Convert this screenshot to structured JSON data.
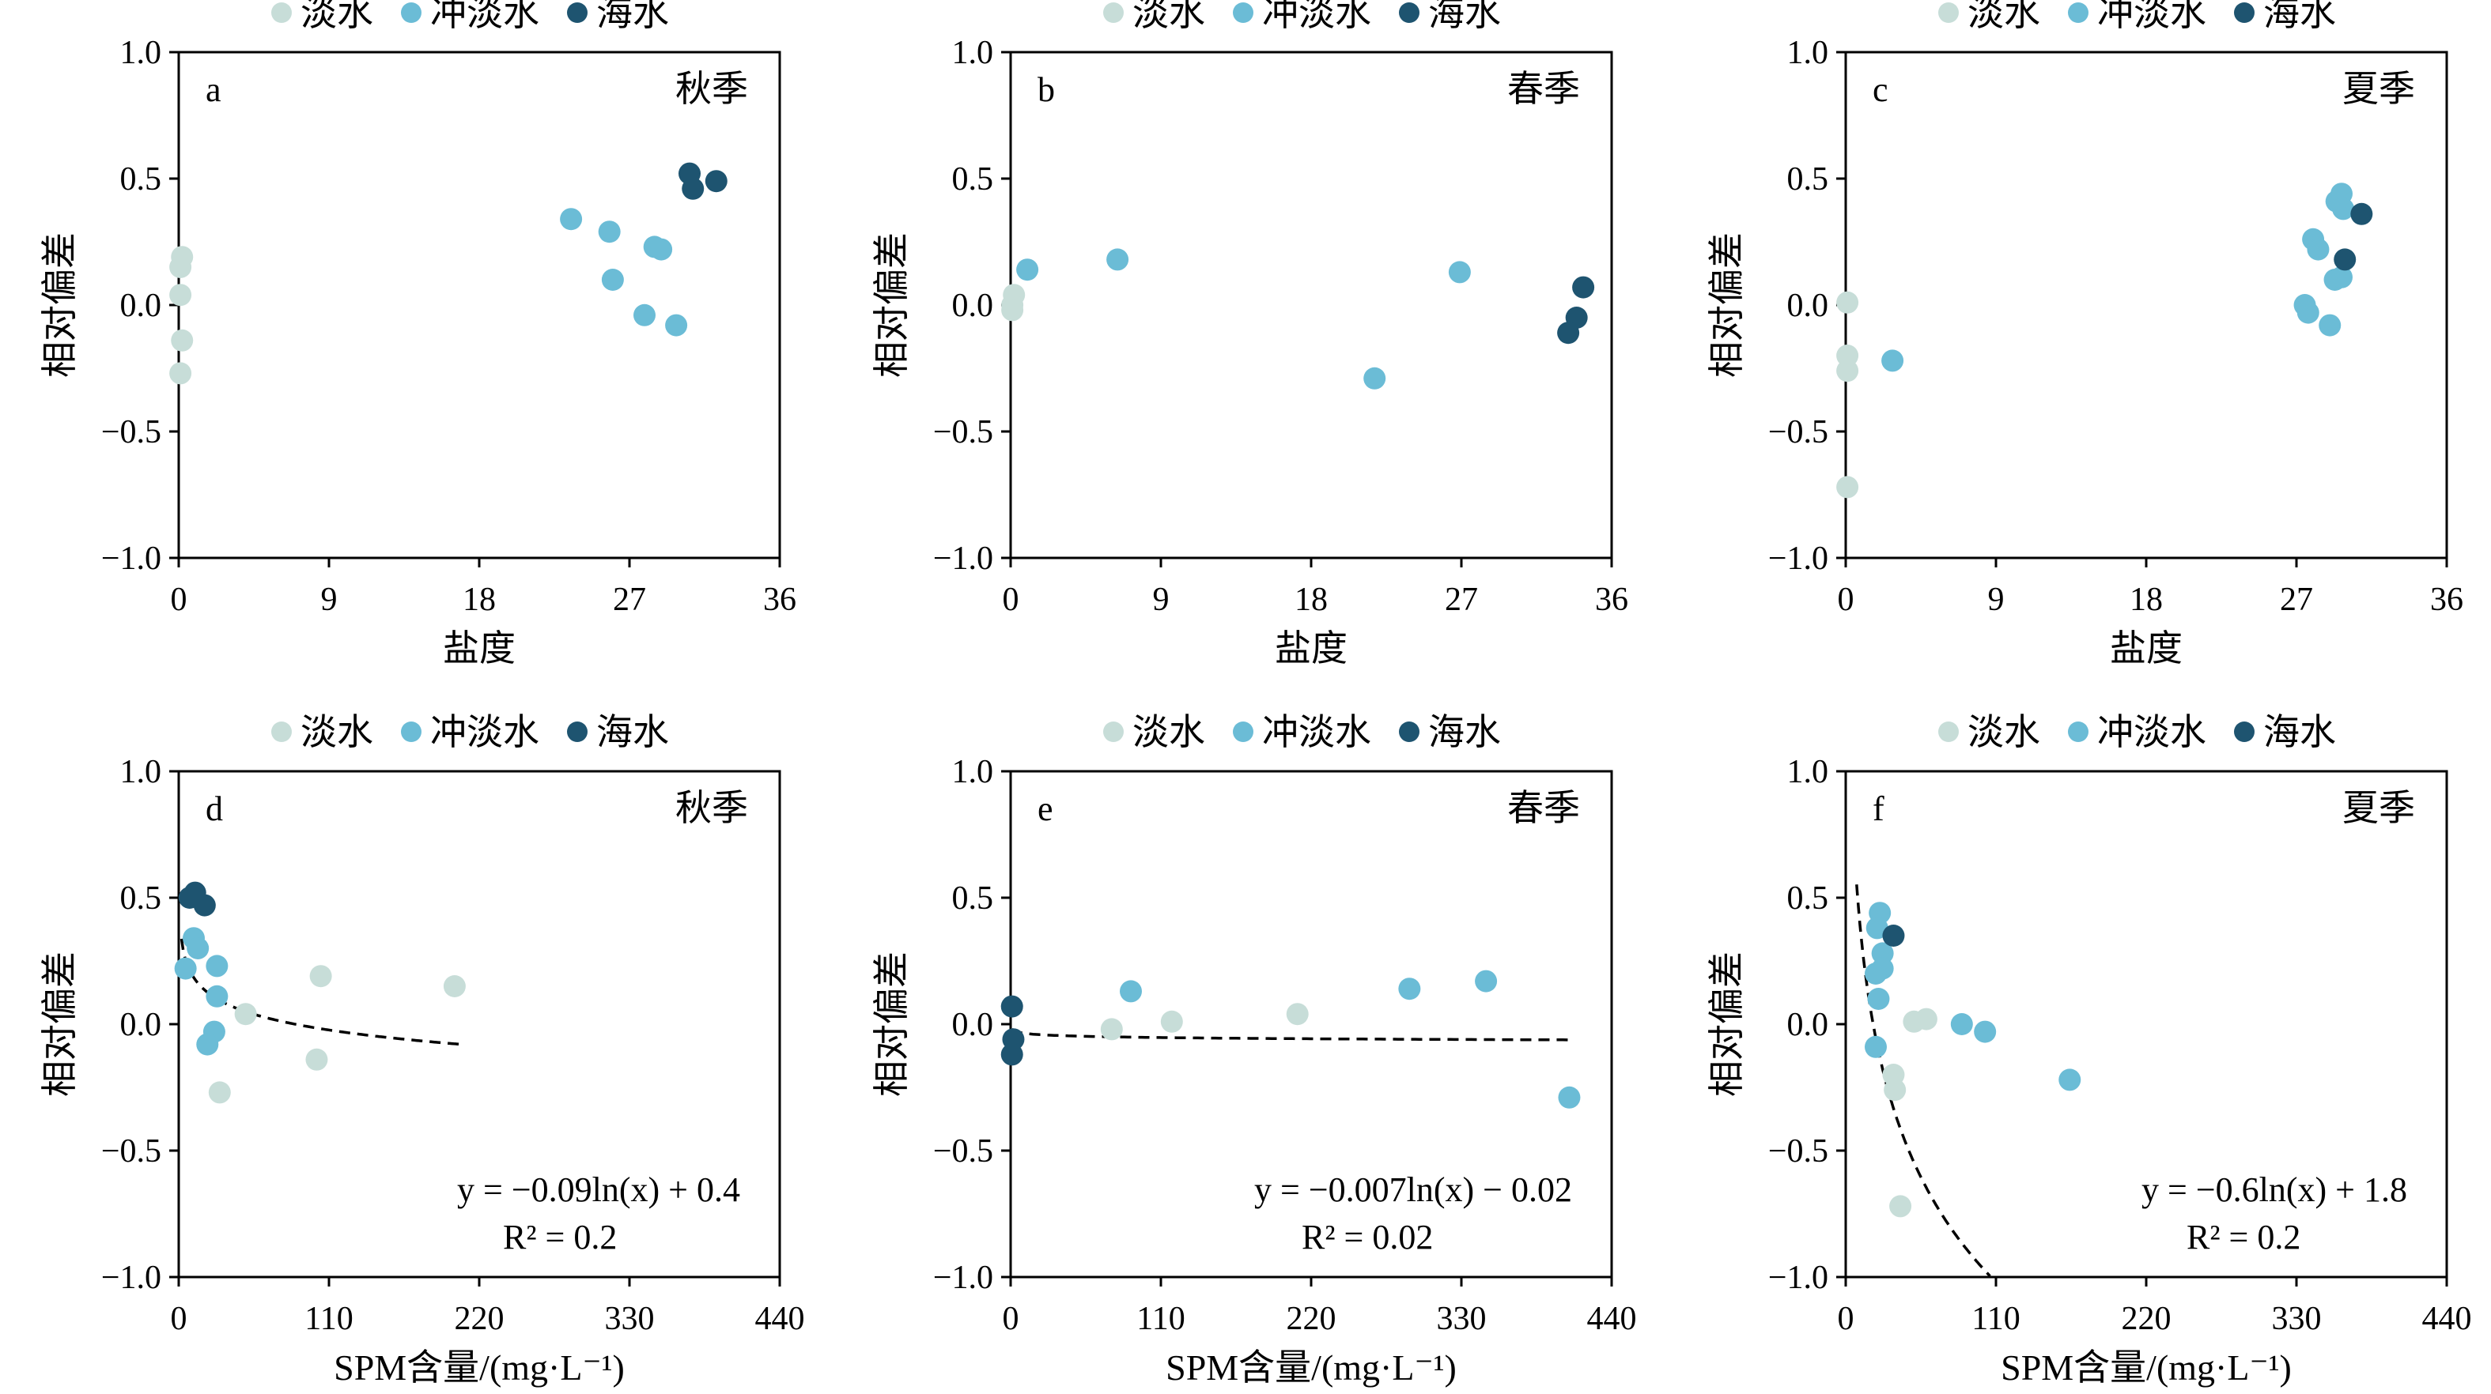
{
  "colors": {
    "淡水": "#c7ddd8",
    "冲淡水": "#6bbcd6",
    "海水": "#1e5470"
  },
  "chart_data": [
    {
      "panel_letter": "a",
      "season": "秋季",
      "type": "scatter",
      "xlabel": "盐度",
      "ylabel": "相对偏差",
      "xlim": [
        0,
        36
      ],
      "ylim": [
        -1.0,
        1.0
      ],
      "xticks": [
        "0",
        "9",
        "18",
        "27",
        "36"
      ],
      "yticks": [
        "1.0",
        "0.5",
        "0.0",
        "−0.5",
        "−1.0"
      ],
      "legend": [
        "淡水",
        "冲淡水",
        "海水"
      ],
      "legend_position": "top-center",
      "series": [
        {
          "name": "淡水",
          "points": [
            [
              0.2,
              0.19
            ],
            [
              0.1,
              0.15
            ],
            [
              0.1,
              0.04
            ],
            [
              0.2,
              -0.14
            ],
            [
              0.1,
              -0.27
            ]
          ]
        },
        {
          "name": "冲淡水",
          "points": [
            [
              23.5,
              0.34
            ],
            [
              25.8,
              0.29
            ],
            [
              26.0,
              0.1
            ],
            [
              28.5,
              0.23
            ],
            [
              28.9,
              0.22
            ],
            [
              27.9,
              -0.04
            ],
            [
              29.8,
              -0.08
            ]
          ]
        },
        {
          "name": "海水",
          "points": [
            [
              30.6,
              0.52
            ],
            [
              30.8,
              0.46
            ],
            [
              32.2,
              0.49
            ]
          ]
        }
      ],
      "fit": null
    },
    {
      "panel_letter": "b",
      "season": "春季",
      "type": "scatter",
      "xlabel": "盐度",
      "ylabel": "相对偏差",
      "xlim": [
        0,
        36
      ],
      "ylim": [
        -1.0,
        1.0
      ],
      "xticks": [
        "0",
        "9",
        "18",
        "27",
        "36"
      ],
      "yticks": [
        "1.0",
        "0.5",
        "0.0",
        "−0.5",
        "−1.0"
      ],
      "legend": [
        "淡水",
        "冲淡水",
        "海水"
      ],
      "legend_position": "top-center",
      "series": [
        {
          "name": "淡水",
          "points": [
            [
              0.2,
              0.04
            ],
            [
              0.1,
              0.0
            ],
            [
              0.1,
              -0.02
            ]
          ]
        },
        {
          "name": "冲淡水",
          "points": [
            [
              1.0,
              0.14
            ],
            [
              6.4,
              0.18
            ],
            [
              21.8,
              -0.29
            ],
            [
              26.9,
              0.13
            ]
          ]
        },
        {
          "name": "海水",
          "points": [
            [
              34.3,
              0.07
            ],
            [
              33.9,
              -0.05
            ],
            [
              33.4,
              -0.11
            ]
          ]
        }
      ],
      "fit": null
    },
    {
      "panel_letter": "c",
      "season": "夏季",
      "type": "scatter",
      "xlabel": "盐度",
      "ylabel": "相对偏差",
      "xlim": [
        0,
        36
      ],
      "ylim": [
        -1.0,
        1.0
      ],
      "xticks": [
        "0",
        "9",
        "18",
        "27",
        "36"
      ],
      "yticks": [
        "1.0",
        "0.5",
        "0.0",
        "−0.5",
        "−1.0"
      ],
      "legend": [
        "淡水",
        "冲淡水",
        "海水"
      ],
      "legend_position": "top-center",
      "series": [
        {
          "name": "淡水",
          "points": [
            [
              0.1,
              0.01
            ],
            [
              0.1,
              -0.2
            ],
            [
              0.1,
              -0.26
            ],
            [
              0.1,
              -0.72
            ]
          ]
        },
        {
          "name": "冲淡水",
          "points": [
            [
              2.8,
              -0.22
            ],
            [
              28.0,
              0.26
            ],
            [
              28.3,
              0.22
            ],
            [
              29.4,
              0.41
            ],
            [
              29.7,
              0.44
            ],
            [
              29.8,
              0.38
            ],
            [
              27.5,
              0.0
            ],
            [
              27.7,
              -0.03
            ],
            [
              29.3,
              0.1
            ],
            [
              29.7,
              0.11
            ],
            [
              29.0,
              -0.08
            ]
          ]
        },
        {
          "name": "海水",
          "points": [
            [
              30.9,
              0.36
            ],
            [
              29.9,
              0.18
            ]
          ]
        }
      ],
      "fit": null
    },
    {
      "panel_letter": "d",
      "season": "秋季",
      "type": "scatter",
      "xlabel": "SPM含量/(mg·L⁻¹)",
      "ylabel": "相对偏差",
      "xlim": [
        0,
        440
      ],
      "ylim": [
        -1.0,
        1.0
      ],
      "xticks": [
        "0",
        "110",
        "220",
        "330",
        "440"
      ],
      "yticks": [
        "1.0",
        "0.5",
        "0.0",
        "−0.5",
        "−1.0"
      ],
      "legend": [
        "淡水",
        "冲淡水",
        "海水"
      ],
      "legend_position": "top-center",
      "series": [
        {
          "name": "淡水",
          "points": [
            [
              104,
              0.19
            ],
            [
              202,
              0.15
            ],
            [
              49,
              0.04
            ],
            [
              101,
              -0.14
            ],
            [
              30,
              -0.27
            ]
          ]
        },
        {
          "name": "冲淡水",
          "points": [
            [
              11,
              0.34
            ],
            [
              14,
              0.3
            ],
            [
              5,
              0.22
            ],
            [
              28,
              0.23
            ],
            [
              28,
              0.11
            ],
            [
              26,
              -0.03
            ],
            [
              21,
              -0.08
            ]
          ]
        },
        {
          "name": "海水",
          "points": [
            [
              12,
              0.52
            ],
            [
              19,
              0.47
            ],
            [
              8,
              0.5
            ]
          ]
        }
      ],
      "fit": {
        "a": -0.09,
        "b": 0.4,
        "x_range": [
          2,
          205
        ],
        "equation": "y = −0.09ln(x) + 0.4",
        "r2": "R² = 0.2"
      }
    },
    {
      "panel_letter": "e",
      "season": "春季",
      "type": "scatter",
      "xlabel": "SPM含量/(mg·L⁻¹)",
      "ylabel": "相对偏差",
      "xlim": [
        0,
        440
      ],
      "ylim": [
        -1.0,
        1.0
      ],
      "xticks": [
        "0",
        "110",
        "220",
        "330",
        "440"
      ],
      "yticks": [
        "1.0",
        "0.5",
        "0.0",
        "−0.5",
        "−1.0"
      ],
      "legend": [
        "淡水",
        "冲淡水",
        "海水"
      ],
      "legend_position": "top-center",
      "series": [
        {
          "name": "淡水",
          "points": [
            [
              74,
              -0.02
            ],
            [
              118,
              0.01
            ],
            [
              210,
              0.04
            ]
          ]
        },
        {
          "name": "冲淡水",
          "points": [
            [
              88,
              0.13
            ],
            [
              292,
              0.14
            ],
            [
              348,
              0.17
            ],
            [
              409,
              -0.29
            ]
          ]
        },
        {
          "name": "海水",
          "points": [
            [
              1,
              0.07
            ],
            [
              2,
              -0.06
            ],
            [
              1,
              -0.12
            ]
          ]
        }
      ],
      "fit": {
        "a": -0.007,
        "b": -0.02,
        "x_range": [
          1,
          412
        ],
        "equation": "y = −0.007ln(x) − 0.02",
        "r2": "R² = 0.02"
      }
    },
    {
      "panel_letter": "f",
      "season": "夏季",
      "type": "scatter",
      "xlabel": "SPM含量/(mg·L⁻¹)",
      "ylabel": "相对偏差",
      "xlim": [
        0,
        440
      ],
      "ylim": [
        -1.0,
        1.0
      ],
      "xticks": [
        "0",
        "110",
        "220",
        "330",
        "440"
      ],
      "yticks": [
        "1.0",
        "0.5",
        "0.0",
        "−0.5",
        "−1.0"
      ],
      "legend": [
        "淡水",
        "冲淡水",
        "海水"
      ],
      "legend_position": "top-center",
      "series": [
        {
          "name": "淡水",
          "points": [
            [
              50,
              0.01
            ],
            [
              59,
              0.02
            ],
            [
              35,
              -0.2
            ],
            [
              36,
              -0.26
            ],
            [
              40,
              -0.72
            ]
          ]
        },
        {
          "name": "冲淡水",
          "points": [
            [
              25,
              0.44
            ],
            [
              23,
              0.38
            ],
            [
              27,
              0.28
            ],
            [
              27,
              0.22
            ],
            [
              22,
              0.2
            ],
            [
              24,
              0.1
            ],
            [
              85,
              0.0
            ],
            [
              102,
              -0.03
            ],
            [
              22,
              -0.09
            ],
            [
              164,
              -0.22
            ]
          ]
        },
        {
          "name": "海水",
          "points": [
            [
              35,
              0.35
            ]
          ]
        }
      ],
      "fit": {
        "a": -0.6,
        "b": 1.8,
        "x_range": [
          8,
          135
        ],
        "equation": "y = −0.6ln(x) + 1.8",
        "r2": "R² = 0.2"
      }
    }
  ]
}
